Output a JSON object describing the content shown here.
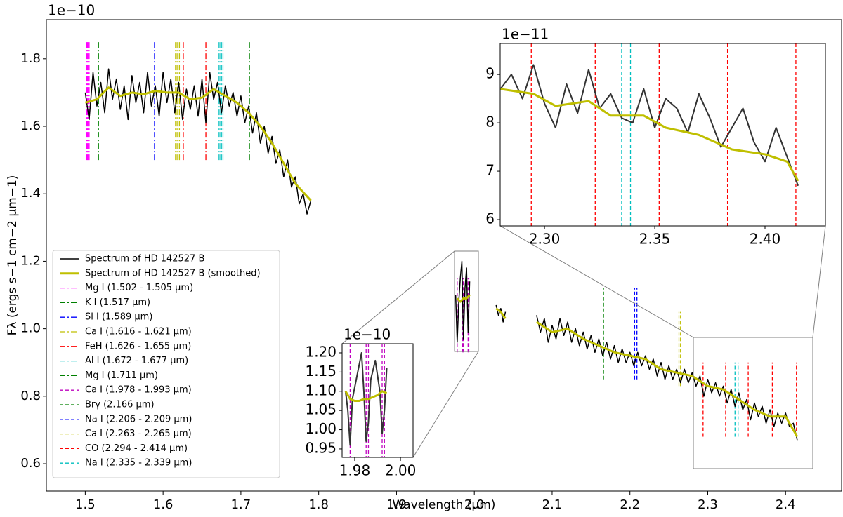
{
  "chart_data": [
    {
      "type": "line",
      "offset_label": "1e−10",
      "xlabel": "Wavelength (μm)",
      "ylabel": "Fλ (ergs s−1 cm−2 μm−1)",
      "xlim": [
        1.45,
        2.472
      ],
      "ylim": [
        0.519,
        1.916
      ],
      "xticks": [
        1.5,
        1.6,
        1.7,
        1.8,
        1.9,
        {
          "value": 2,
          "label": "2.0"
        },
        2.1,
        2.2,
        2.3,
        2.4
      ],
      "yticks": [
        0.6,
        0.8,
        {
          "value": 1,
          "label": "1.0"
        },
        1.2,
        1.4,
        1.6,
        1.8
      ],
      "legend": "lower left",
      "series": [
        {
          "name": "Spectrum of HD 142527 B",
          "color": "#000000",
          "width": 1.5,
          "x": [
            1.5,
            1.505,
            1.51,
            1.515,
            1.52,
            1.525,
            1.53,
            1.535,
            1.54,
            1.545,
            1.55,
            1.555,
            1.56,
            1.565,
            1.57,
            1.575,
            1.58,
            1.585,
            1.59,
            1.595,
            1.6,
            1.605,
            1.61,
            1.615,
            1.62,
            1.625,
            1.63,
            1.635,
            1.64,
            1.645,
            1.65,
            1.655,
            1.66,
            1.665,
            1.67,
            1.675,
            1.68,
            1.685,
            1.69,
            1.695,
            1.7,
            1.705,
            1.71,
            1.715,
            1.72,
            1.725,
            1.73,
            1.735,
            1.74,
            1.745,
            1.75,
            1.755,
            1.76,
            1.765,
            1.77,
            1.775,
            1.78,
            1.785,
            1.79,
            1.88,
            1.976,
            1.978,
            1.98,
            1.982,
            1.984,
            1.986,
            1.988,
            1.99,
            1.992,
            1.994,
            2.01,
            2.028,
            2.031,
            2.034,
            2.037,
            2.04,
            2.06,
            2.08,
            2.085,
            2.09,
            2.095,
            2.1,
            2.105,
            2.11,
            2.115,
            2.12,
            2.125,
            2.13,
            2.135,
            2.14,
            2.145,
            2.15,
            2.155,
            2.16,
            2.165,
            2.17,
            2.175,
            2.18,
            2.185,
            2.19,
            2.195,
            2.2,
            2.205,
            2.21,
            2.215,
            2.22,
            2.225,
            2.23,
            2.235,
            2.24,
            2.245,
            2.25,
            2.255,
            2.26,
            2.265,
            2.27,
            2.275,
            2.28,
            2.285,
            2.29,
            2.295,
            2.3,
            2.305,
            2.31,
            2.315,
            2.32,
            2.325,
            2.33,
            2.335,
            2.34,
            2.345,
            2.35,
            2.355,
            2.36,
            2.365,
            2.37,
            2.375,
            2.38,
            2.385,
            2.39,
            2.395,
            2.4,
            2.405,
            2.41,
            2.415
          ],
          "values": [
            1.7,
            1.62,
            1.76,
            1.66,
            1.73,
            1.64,
            1.77,
            1.68,
            1.74,
            1.65,
            1.72,
            1.62,
            1.75,
            1.67,
            1.73,
            1.64,
            1.76,
            1.66,
            1.72,
            1.63,
            1.76,
            1.67,
            1.74,
            1.64,
            1.73,
            1.62,
            1.71,
            1.65,
            1.72,
            1.63,
            1.74,
            1.61,
            1.76,
            1.68,
            1.73,
            1.64,
            1.72,
            1.66,
            1.7,
            1.63,
            1.69,
            1.61,
            1.66,
            1.58,
            1.64,
            1.55,
            1.6,
            1.52,
            1.57,
            1.49,
            1.53,
            1.45,
            1.5,
            1.42,
            1.45,
            1.37,
            1.4,
            1.34,
            1.38,
            null,
            1.1,
            0.96,
            1.08,
            1.15,
            1.2,
            0.97,
            1.12,
            1.18,
            0.99,
            1.14,
            null,
            1.07,
            1.04,
            1.06,
            1.02,
            1.05,
            null,
            1.04,
            0.99,
            1.03,
            0.96,
            1.01,
            0.97,
            1.03,
            0.98,
            1.02,
            0.96,
            1.0,
            0.95,
            0.99,
            0.94,
            0.98,
            0.93,
            0.97,
            0.92,
            0.96,
            0.91,
            0.95,
            0.9,
            0.94,
            0.9,
            0.93,
            0.89,
            0.93,
            0.89,
            0.92,
            0.88,
            0.91,
            0.86,
            0.9,
            0.85,
            0.89,
            0.85,
            0.88,
            0.84,
            0.88,
            0.84,
            0.87,
            0.83,
            0.86,
            0.8,
            0.85,
            0.81,
            0.84,
            0.8,
            0.83,
            0.78,
            0.82,
            0.77,
            0.81,
            0.76,
            0.79,
            0.73,
            0.78,
            0.74,
            0.77,
            0.72,
            0.76,
            0.71,
            0.75,
            0.72,
            0.75,
            0.71,
            0.72,
            0.67
          ]
        },
        {
          "name": "Spectrum of HD 142527 B (smoothed)",
          "color": "#bfbf00",
          "width": 3,
          "x": [
            1.5,
            1.515,
            1.53,
            1.545,
            1.56,
            1.575,
            1.59,
            1.605,
            1.62,
            1.635,
            1.65,
            1.665,
            1.68,
            1.695,
            1.71,
            1.725,
            1.74,
            1.755,
            1.77,
            1.79,
            1.88,
            1.978,
            1.982,
            1.986,
            1.99,
            1.994,
            2.01,
            2.028,
            2.034,
            2.04,
            2.06,
            2.08,
            2.1,
            2.12,
            2.14,
            2.16,
            2.18,
            2.2,
            2.22,
            2.24,
            2.26,
            2.28,
            2.3,
            2.32,
            2.34,
            2.36,
            2.38,
            2.4,
            2.415
          ],
          "values": [
            1.67,
            1.68,
            1.715,
            1.69,
            1.7,
            1.695,
            1.705,
            1.7,
            1.7,
            1.68,
            1.685,
            1.71,
            1.69,
            1.67,
            1.64,
            1.6,
            1.55,
            1.49,
            1.43,
            1.38,
            null,
            1.09,
            1.08,
            1.09,
            1.09,
            1.1,
            null,
            1.06,
            1.05,
            1.03,
            null,
            1.02,
            0.99,
            1.0,
            0.97,
            0.95,
            0.93,
            0.92,
            0.91,
            0.88,
            0.87,
            0.86,
            0.83,
            0.82,
            0.79,
            0.76,
            0.74,
            0.74,
            0.68
          ]
        }
      ],
      "lines": [
        {
          "name": "Mg I (1.502 - 1.505 μm)",
          "color": "#ff00ff",
          "style": "dashdot",
          "x": [
            1.502,
            1.503,
            1.504,
            1.505
          ],
          "ymin": 1.5,
          "ymax": 1.85
        },
        {
          "name": "K I (1.517 μm)",
          "color": "#008000",
          "style": "dashdot",
          "x": [
            1.517
          ],
          "ymin": 1.5,
          "ymax": 1.85
        },
        {
          "name": "Si I (1.589 μm)",
          "color": "#0000ff",
          "style": "dashdot",
          "x": [
            1.589
          ],
          "ymin": 1.5,
          "ymax": 1.85
        },
        {
          "name": "Ca I (1.616 - 1.621 μm)",
          "color": "#bfbf00",
          "style": "dashdot",
          "x": [
            1.616,
            1.618,
            1.621
          ],
          "ymin": 1.5,
          "ymax": 1.85
        },
        {
          "name": "FeH (1.626 - 1.655 μm)",
          "color": "#ff0000",
          "style": "dashdot",
          "x": [
            1.626,
            1.655
          ],
          "ymin": 1.5,
          "ymax": 1.85
        },
        {
          "name": "Al I (1.672 - 1.677 μm)",
          "color": "#00bfbf",
          "style": "dashdot",
          "x": [
            1.672,
            1.674,
            1.675,
            1.677
          ],
          "ymin": 1.5,
          "ymax": 1.85
        },
        {
          "name": "Mg I (1.711 μm)",
          "color": "#008000",
          "style": "dashdot",
          "x": [
            1.711
          ],
          "ymin": 1.5,
          "ymax": 1.85
        },
        {
          "name": "Ca I (1.978 - 1.993 μm)",
          "color": "#bf00bf",
          "style": "dashed",
          "x": [
            1.978,
            1.985,
            1.986,
            1.992,
            1.993
          ],
          "ymin": 0.93,
          "ymax": 1.15
        },
        {
          "name": "Brγ (2.166 μm)",
          "color": "#008000",
          "style": "dashed",
          "x": [
            2.166
          ],
          "ymin": 0.85,
          "ymax": 1.12
        },
        {
          "name": "Na I (2.206 - 2.209 μm)",
          "color": "#0000ff",
          "style": "dashed",
          "x": [
            2.206,
            2.209
          ],
          "ymin": 0.85,
          "ymax": 1.12
        },
        {
          "name": "Ca I (2.263 - 2.265 μm)",
          "color": "#bfbf00",
          "style": "dashed",
          "x": [
            2.263,
            2.265
          ],
          "ymin": 0.83,
          "ymax": 1.05
        },
        {
          "name": "CO (2.294 - 2.414 μm)",
          "color": "#ff0000",
          "style": "dashed",
          "x": [
            2.294,
            2.323,
            2.352,
            2.383,
            2.414
          ],
          "ymin": 0.68,
          "ymax": 0.9
        },
        {
          "name": "Na I (2.335 - 2.339 μm)",
          "color": "#00bfbf",
          "style": "dashed",
          "x": [
            2.335,
            2.339
          ],
          "ymin": 0.68,
          "ymax": 0.9
        }
      ]
    },
    {
      "type": "line",
      "offset_label": "1e−11",
      "xlim": [
        2.2799,
        2.4274
      ],
      "ylim": [
        5.87,
        9.64
      ],
      "xticks": [
        {
          "value": 2.3,
          "label": "2.30"
        },
        2.35,
        {
          "value": 2.4,
          "label": "2.40"
        }
      ],
      "yticks": [
        6,
        7,
        8,
        9
      ],
      "series": [
        {
          "color": "#333333",
          "width": 2,
          "x": [
            2.28,
            2.285,
            2.29,
            2.295,
            2.3,
            2.305,
            2.31,
            2.315,
            2.32,
            2.325,
            2.33,
            2.335,
            2.34,
            2.345,
            2.35,
            2.355,
            2.36,
            2.365,
            2.37,
            2.375,
            2.38,
            2.385,
            2.39,
            2.395,
            2.4,
            2.405,
            2.41,
            2.415
          ],
          "values": [
            8.7,
            9.0,
            8.5,
            9.2,
            8.4,
            7.9,
            8.8,
            8.2,
            9.1,
            8.3,
            8.6,
            8.1,
            8.0,
            8.7,
            7.9,
            8.5,
            8.3,
            7.8,
            8.6,
            8.1,
            7.5,
            7.9,
            8.3,
            7.6,
            7.2,
            7.9,
            7.3,
            6.7
          ]
        },
        {
          "color": "#bfbf00",
          "width": 3,
          "x": [
            2.28,
            2.295,
            2.305,
            2.32,
            2.33,
            2.345,
            2.355,
            2.37,
            2.385,
            2.4,
            2.41,
            2.415
          ],
          "values": [
            8.7,
            8.6,
            8.35,
            8.45,
            8.15,
            8.15,
            7.9,
            7.75,
            7.45,
            7.35,
            7.2,
            6.8
          ]
        }
      ]
    },
    {
      "type": "line",
      "offset_label": "1e−10",
      "xlim": [
        1.9745,
        2.0055
      ],
      "ylim": [
        0.928,
        1.2237
      ],
      "xticks": [
        1.98,
        {
          "value": 2,
          "label": "2.00"
        }
      ],
      "yticks": [
        0.95,
        {
          "value": 1,
          "label": "1.00"
        },
        1.05,
        {
          "value": 1.1,
          "label": "1.10"
        },
        1.15,
        {
          "value": 1.2,
          "label": "1.20"
        }
      ],
      "series": [
        {
          "color": "#333333",
          "width": 2,
          "x": [
            1.976,
            1.977,
            1.978,
            1.979,
            1.981,
            1.983,
            1.984,
            1.985,
            1.986,
            1.987,
            1.989,
            1.991,
            1.992,
            1.993,
            1.994
          ],
          "values": [
            1.1,
            1.05,
            0.96,
            1.08,
            1.14,
            1.2,
            1.1,
            0.97,
            1.02,
            1.13,
            1.18,
            1.1,
            0.99,
            1.05,
            1.16
          ]
        },
        {
          "color": "#bfbf00",
          "width": 3,
          "x": [
            1.976,
            1.978,
            1.98,
            1.982,
            1.984,
            1.986,
            1.988,
            1.99,
            1.992,
            1.994
          ],
          "values": [
            1.1,
            1.08,
            1.075,
            1.075,
            1.08,
            1.08,
            1.085,
            1.09,
            1.1,
            1.095
          ]
        }
      ]
    }
  ]
}
